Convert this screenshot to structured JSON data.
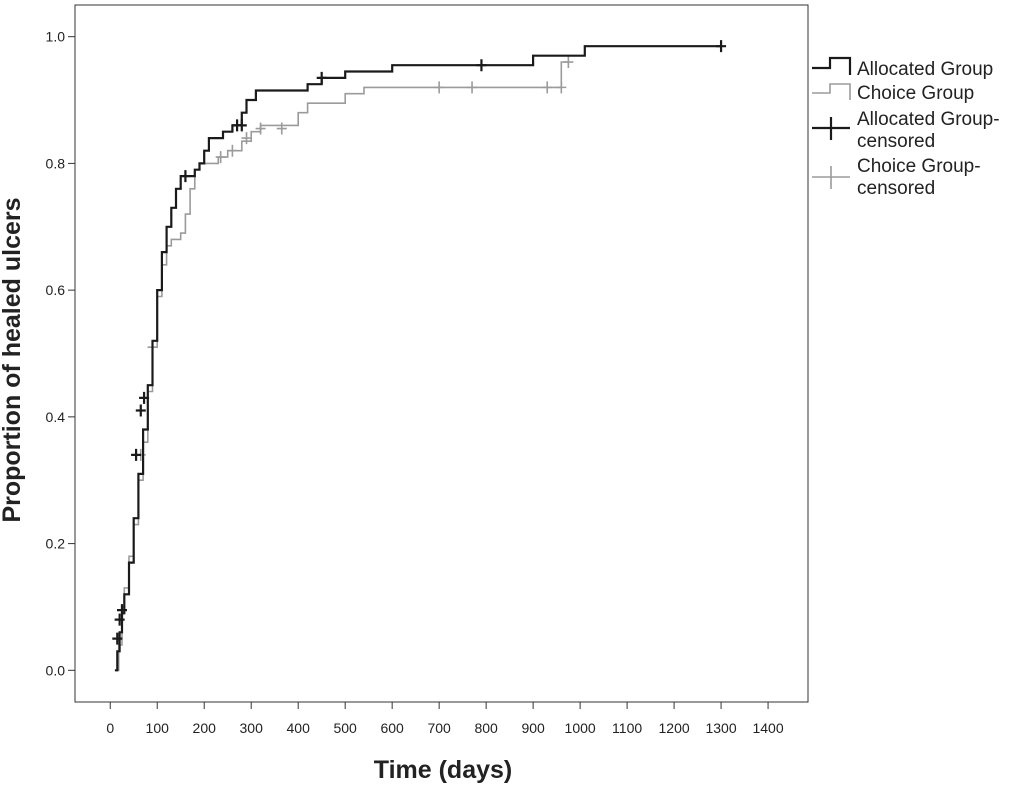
{
  "chart_data": {
    "type": "line",
    "title": "",
    "xlabel": "Time (days)",
    "ylabel": "Proportion of healed ulcers",
    "xlim": [
      -75,
      1485
    ],
    "ylim": [
      -0.05,
      1.05
    ],
    "xticks": [
      0,
      100,
      200,
      300,
      400,
      500,
      600,
      700,
      800,
      900,
      1000,
      1100,
      1200,
      1300,
      1400
    ],
    "yticks": [
      0.0,
      0.2,
      0.4,
      0.6,
      0.8,
      1.0
    ],
    "ytick_labels": [
      "0.0",
      "0.2",
      "0.4",
      "0.6",
      "0.8",
      "1.0"
    ],
    "grid": false,
    "legend_position": "right, outside plot",
    "series": [
      {
        "name": "Allocated Group",
        "censored_name": "Allocated Group-censored",
        "color": "#1a1a1a",
        "stroke_width": 2.2,
        "steps": [
          [
            10,
            0.0
          ],
          [
            15,
            0.03
          ],
          [
            20,
            0.06
          ],
          [
            25,
            0.09
          ],
          [
            30,
            0.12
          ],
          [
            40,
            0.17
          ],
          [
            50,
            0.24
          ],
          [
            60,
            0.31
          ],
          [
            70,
            0.38
          ],
          [
            80,
            0.45
          ],
          [
            90,
            0.52
          ],
          [
            100,
            0.6
          ],
          [
            110,
            0.66
          ],
          [
            120,
            0.7
          ],
          [
            130,
            0.73
          ],
          [
            140,
            0.76
          ],
          [
            150,
            0.78
          ],
          [
            180,
            0.79
          ],
          [
            190,
            0.8
          ],
          [
            200,
            0.82
          ],
          [
            210,
            0.84
          ],
          [
            240,
            0.85
          ],
          [
            260,
            0.86
          ],
          [
            280,
            0.88
          ],
          [
            290,
            0.9
          ],
          [
            310,
            0.915
          ],
          [
            420,
            0.925
          ],
          [
            450,
            0.935
          ],
          [
            500,
            0.945
          ],
          [
            600,
            0.955
          ],
          [
            900,
            0.97
          ],
          [
            1010,
            0.985
          ],
          [
            1300,
            0.985
          ]
        ],
        "censored": [
          [
            15,
            0.05
          ],
          [
            20,
            0.08
          ],
          [
            25,
            0.095
          ],
          [
            55,
            0.34
          ],
          [
            65,
            0.41
          ],
          [
            72,
            0.43
          ],
          [
            160,
            0.78
          ],
          [
            270,
            0.86
          ],
          [
            280,
            0.86
          ],
          [
            450,
            0.935
          ],
          [
            790,
            0.955
          ],
          [
            1300,
            0.985
          ]
        ]
      },
      {
        "name": "Choice Group",
        "censored_name": "Choice Group-censored",
        "color": "#9b9b9b",
        "stroke_width": 1.6,
        "steps": [
          [
            10,
            0.0
          ],
          [
            18,
            0.04
          ],
          [
            25,
            0.1
          ],
          [
            30,
            0.13
          ],
          [
            40,
            0.18
          ],
          [
            50,
            0.23
          ],
          [
            60,
            0.3
          ],
          [
            70,
            0.36
          ],
          [
            80,
            0.44
          ],
          [
            90,
            0.51
          ],
          [
            100,
            0.59
          ],
          [
            110,
            0.64
          ],
          [
            120,
            0.67
          ],
          [
            130,
            0.68
          ],
          [
            150,
            0.69
          ],
          [
            160,
            0.72
          ],
          [
            170,
            0.76
          ],
          [
            180,
            0.79
          ],
          [
            190,
            0.8
          ],
          [
            230,
            0.81
          ],
          [
            250,
            0.82
          ],
          [
            280,
            0.835
          ],
          [
            300,
            0.85
          ],
          [
            320,
            0.86
          ],
          [
            400,
            0.88
          ],
          [
            420,
            0.895
          ],
          [
            500,
            0.91
          ],
          [
            540,
            0.92
          ],
          [
            960,
            0.96
          ],
          [
            975,
            0.96
          ]
        ],
        "censored": [
          [
            65,
            0.34
          ],
          [
            90,
            0.51
          ],
          [
            235,
            0.81
          ],
          [
            260,
            0.82
          ],
          [
            290,
            0.84
          ],
          [
            320,
            0.855
          ],
          [
            365,
            0.855
          ],
          [
            700,
            0.92
          ],
          [
            770,
            0.92
          ],
          [
            930,
            0.92
          ],
          [
            960,
            0.92
          ],
          [
            975,
            0.96
          ]
        ]
      }
    ]
  }
}
